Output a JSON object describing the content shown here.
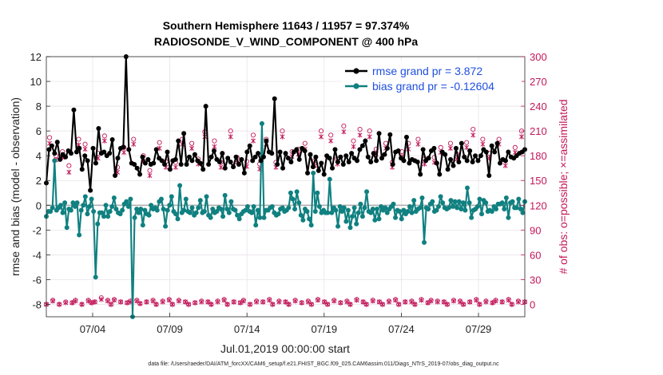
{
  "chart_data": {
    "type": "line",
    "title": "Southern Hemisphere 11643 / 11957 = 97.374%",
    "subtitle": "RADIOSONDE_V_WIND_COMPONENT @ 400 hPa",
    "xlabel": "Jul.01,2019 00:00:00 start",
    "ylabel": "rmse and bias (model - observation)",
    "y2label": "# of obs: o=possible; ×=assimilated",
    "footnote": "data file: /Users/raeder/DAI/ATM_forcXX/CAM6_setup/f.e21.FHIST_BGC.f09_025.CAM6assim.011/Diags_NTrS_2019-07/obs_diag_output.nc",
    "xlim": [
      1.0,
      32.0
    ],
    "ylim": [
      -9,
      12
    ],
    "y2lim": [
      -15,
      300
    ],
    "xticks": [
      4,
      9,
      14,
      19,
      24,
      29
    ],
    "xtick_labels": [
      "07/04",
      "07/09",
      "07/14",
      "07/19",
      "07/24",
      "07/29"
    ],
    "yticks": [
      -8,
      -6,
      -4,
      -2,
      0,
      2,
      4,
      6,
      8,
      10,
      12
    ],
    "y2ticks": [
      0,
      30,
      60,
      90,
      120,
      150,
      180,
      210,
      240,
      270,
      300
    ],
    "legend_location": "top-right",
    "colors": {
      "rmse": "#000000",
      "bias": "#108080",
      "obs": "#c2185b",
      "zero": "#b0b0b0",
      "grid": "#e6dfe6"
    },
    "series": [
      {
        "name": "rmse",
        "label": "rmse grand pr = 3.872",
        "color": "#000000",
        "values": [
          1.8,
          4.5,
          4.8,
          4.2,
          5.1,
          3.7,
          4.1,
          3.9,
          4.4,
          4.2,
          7.7,
          4.3,
          4.6,
          2.9,
          4.0,
          3.6,
          1.2,
          4.6,
          3.4,
          6.2,
          4.2,
          4.3,
          4.0,
          4.2,
          5.3,
          2.4,
          3.8,
          4.6,
          4.7,
          12.0,
          4.5,
          3.4,
          3.3,
          3.0,
          2.5,
          3.9,
          3.4,
          3.7,
          3.3,
          3.4,
          4.5,
          3.8,
          3.6,
          3.3,
          4.3,
          2.9,
          3.6,
          3.7,
          5.2,
          3.3,
          5.8,
          3.3,
          3.9,
          3.6,
          4.1,
          3.6,
          3.4,
          2.9,
          8.0,
          3.3,
          3.9,
          4.4,
          3.7,
          3.5,
          4.2,
          3.0,
          3.8,
          3.5,
          3.1,
          3.9,
          3.3,
          3.7,
          2.6,
          4.3,
          4.8,
          3.6,
          3.9,
          4.2,
          3.6,
          3.9,
          5.2,
          4.3,
          4.2,
          8.6,
          3.3,
          4.3,
          3.0,
          4.2,
          3.8,
          3.5,
          4.3,
          4.5,
          3.7,
          4.6,
          4.4,
          2.6,
          4.1,
          3.1,
          3.9,
          2.8,
          3.4,
          2.5,
          4.0,
          3.8,
          3.0,
          4.5,
          3.5,
          3.9,
          3.3,
          4.0,
          3.5,
          4.2,
          3.8,
          3.6,
          4.5,
          4.8,
          5.2,
          3.9,
          3.5,
          4.2,
          3.6,
          5.8,
          3.8,
          4.1,
          4.6,
          5.7,
          3.3,
          4.3,
          4.4,
          3.8,
          3.6,
          5.5,
          3.4,
          3.7,
          3.6,
          3.5,
          2.5,
          4.5,
          3.6,
          3.8,
          4.4,
          4.6,
          3.4,
          2.5,
          4.3,
          4.1,
          2.9,
          3.7,
          3.2,
          4.6,
          3.5,
          5.0,
          3.9,
          3.6,
          4.4,
          3.5,
          4.0,
          3.6,
          4.0,
          4.5,
          4.3,
          2.4,
          4.8,
          4.3,
          5.0,
          3.4,
          3.7,
          3.6,
          4.3,
          3.9,
          3.8,
          4.0,
          4.2,
          4.3,
          4.5
        ]
      },
      {
        "name": "bias",
        "label": "bias grand pr = -0.12604",
        "color": "#108080",
        "values": [
          -0.9,
          -0.5,
          -0.5,
          -0.2,
          3.6,
          -0.4,
          -0.2,
          0.0,
          -0.6,
          0.2,
          -1.8,
          -0.3,
          -0.4,
          0.2,
          -0.1,
          0.2,
          -2.4,
          -0.4,
          0.0,
          0.7,
          -0.7,
          -0.1,
          0.5,
          -0.5,
          -5.8,
          -1.5,
          -0.6,
          -0.6,
          -0.9,
          0.0,
          -0.9,
          -0.5,
          -0.1,
          0.6,
          -0.3,
          -0.6,
          -0.7,
          -0.4,
          0.1,
          0.3,
          -0.1,
          0.5,
          -9.0,
          -1.0,
          -0.3,
          -0.6,
          -0.3,
          -1.6,
          -0.4,
          -0.7,
          -0.8,
          0.0,
          -0.3,
          -0.2,
          -0.4,
          0.3,
          0.5,
          -0.3,
          -1.7,
          -0.4,
          0.0,
          0.7,
          -0.5,
          -0.7,
          -1.1,
          1.6,
          -0.6,
          -0.4,
          0.5,
          -0.5,
          -0.6,
          -0.2,
          -0.8,
          -0.6,
          -0.2,
          0.4,
          -0.6,
          -0.5,
          0.7,
          -0.8,
          -1.0,
          -0.3,
          -0.6,
          -0.5,
          -0.2,
          -0.3,
          -0.9,
          0.8,
          -0.3,
          -0.6,
          0.3,
          -0.3,
          -0.4,
          -0.8,
          -1.1,
          -0.7,
          -0.5,
          -0.4,
          -0.1,
          -0.5,
          -0.6,
          -0.1,
          -1.6,
          -0.4,
          -1.0,
          6.6,
          -1.0,
          -0.4,
          -0.4,
          -0.2,
          -0.1,
          -0.6,
          -0.8,
          -0.7,
          -0.3,
          -0.2,
          -0.5,
          -0.4,
          -0.2,
          1.0,
          0.5,
          -0.3,
          1.1,
          0.2,
          -0.8,
          -1.2,
          -0.3,
          -0.5,
          -1.1,
          -1.6,
          2.6,
          -0.5,
          1.0,
          -0.1,
          -0.6,
          -0.4,
          -0.6,
          -0.6,
          2.1,
          -0.6,
          -0.2,
          -0.4,
          -1.7,
          -0.1,
          -0.5,
          -0.2,
          -1.3,
          -0.4,
          -1.8,
          -0.9,
          -0.2,
          -1.5,
          -0.6,
          0.1,
          -0.9,
          -0.2,
          1.1,
          -0.5,
          -0.6,
          -0.3,
          -1.2,
          -0.3,
          -1.1,
          -0.1,
          -0.4,
          -0.2,
          -0.6,
          -0.3,
          -0.1,
          0.1,
          -1.0,
          -0.4,
          -0.5,
          -1.1,
          -0.4,
          -0.7,
          -0.5,
          -0.1,
          -0.6,
          0.4,
          -0.5,
          -0.3,
          -0.2,
          0.6,
          -3.0,
          -0.2,
          -0.3,
          0.1,
          0.3,
          -0.5,
          -0.4,
          -0.1,
          0.7,
          0.2,
          -0.2,
          -0.3,
          -0.2,
          0.4,
          -0.1,
          0.3,
          -0.2,
          0.3,
          -0.3,
          0.2,
          -0.4,
          1.4,
          0.2,
          -1.0,
          -0.4,
          -0.3,
          -0.1,
          0.5,
          -0.7,
          0.4,
          0.2,
          -0.5,
          -0.4,
          -0.5,
          -0.1,
          -0.3,
          0.1,
          0.1,
          0.2,
          -0.3,
          0.6,
          -1.0,
          0.2,
          0.3,
          -0.2,
          -0.2,
          0.5,
          -0.3,
          -0.6,
          0.3
        ]
      },
      {
        "name": "obs_possible",
        "label": "o=possible",
        "color": "#c2185b",
        "values": [
          0,
          202,
          5,
          180,
          0,
          185,
          3,
          168,
          2,
          5,
          200,
          0,
          194,
          5,
          2,
          3,
          183,
          8,
          204,
          5,
          0,
          6,
          166,
          3,
          190,
          2,
          4,
          200,
          5,
          1,
          180,
          3,
          162,
          5,
          0,
          196,
          4,
          173,
          6,
          0,
          172,
          5,
          200,
          3,
          0,
          195,
          2,
          176,
          4,
          209,
          3,
          0,
          198,
          4,
          172,
          6,
          0,
          210,
          3,
          178,
          2,
          5,
          173,
          0,
          205,
          4,
          170,
          3,
          200,
          6,
          0,
          172,
          4,
          210,
          3,
          0,
          185,
          5,
          188,
          2,
          195,
          4,
          0,
          174,
          6,
          210,
          3,
          0,
          205,
          5,
          176,
          2,
          216,
          4,
          0,
          198,
          6,
          212,
          3,
          0,
          210,
          5,
          188,
          3,
          0,
          195,
          4,
          172,
          6,
          0,
          185,
          3,
          195,
          4,
          0,
          200,
          6,
          176,
          2,
          5,
          178,
          4,
          190,
          3,
          0,
          195,
          5,
          182,
          4,
          0,
          196,
          3,
          212,
          6,
          0,
          200,
          4,
          183,
          2,
          5,
          200,
          3,
          174,
          6,
          0,
          190,
          4,
          210,
          3
        ]
      },
      {
        "name": "obs_assimilated",
        "label": "×=assimilated",
        "color": "#c2185b",
        "values": [
          0,
          195,
          4,
          175,
          0,
          178,
          2,
          160,
          2,
          4,
          193,
          0,
          188,
          4,
          2,
          3,
          177,
          6,
          198,
          4,
          0,
          5,
          160,
          3,
          184,
          2,
          3,
          194,
          4,
          1,
          173,
          3,
          156,
          4,
          0,
          189,
          3,
          166,
          5,
          0,
          166,
          4,
          194,
          3,
          0,
          189,
          2,
          170,
          3,
          203,
          3,
          0,
          191,
          3,
          166,
          5,
          0,
          203,
          3,
          172,
          2,
          4,
          167,
          0,
          198,
          3,
          164,
          3,
          194,
          5,
          0,
          166,
          3,
          203,
          3,
          0,
          179,
          4,
          182,
          2,
          188,
          3,
          0,
          168,
          5,
          203,
          3,
          0,
          198,
          4,
          170,
          2,
          209,
          3,
          0,
          191,
          5,
          205,
          3,
          0,
          203,
          4,
          182,
          3,
          0,
          189,
          3,
          166,
          5,
          0,
          179,
          3,
          188,
          3,
          0,
          194,
          5,
          170,
          2,
          4,
          172,
          3,
          184,
          3,
          0,
          189,
          4,
          176,
          3,
          0,
          190,
          3,
          205,
          5,
          0,
          194,
          3,
          177,
          2,
          4,
          194,
          3,
          168,
          5,
          0,
          184,
          3,
          203,
          3
        ]
      }
    ]
  }
}
